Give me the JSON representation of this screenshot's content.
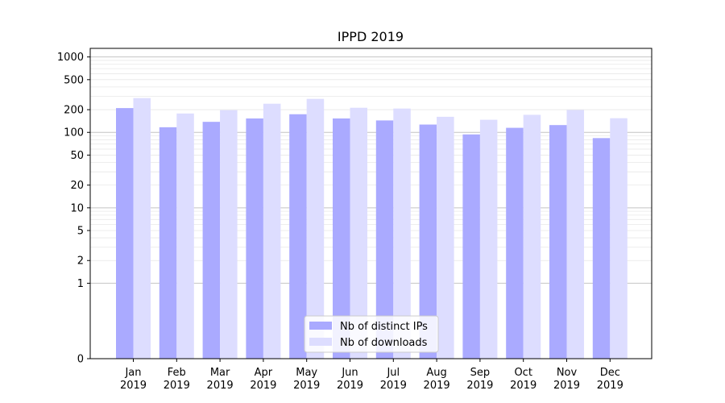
{
  "chart_data": {
    "type": "bar",
    "title": "IPPD 2019",
    "xlabel": "",
    "ylabel": "",
    "yscale": "symlog",
    "ylim": [
      0,
      1300
    ],
    "y_ticks": [
      0,
      1,
      2,
      5,
      10,
      20,
      50,
      100,
      200,
      500,
      1000
    ],
    "grid": "horizontal",
    "legend_position": "bottom-center",
    "categories": [
      [
        "Jan",
        "2019"
      ],
      [
        "Feb",
        "2019"
      ],
      [
        "Mar",
        "2019"
      ],
      [
        "Apr",
        "2019"
      ],
      [
        "May",
        "2019"
      ],
      [
        "Jun",
        "2019"
      ],
      [
        "Jul",
        "2019"
      ],
      [
        "Aug",
        "2019"
      ],
      [
        "Sep",
        "2019"
      ],
      [
        "Oct",
        "2019"
      ],
      [
        "Nov",
        "2019"
      ],
      [
        "Dec",
        "2019"
      ]
    ],
    "series": [
      {
        "name": "Nb of distinct IPs",
        "color": "#aaaaff",
        "values": [
          210,
          117,
          138,
          153,
          174,
          153,
          144,
          127,
          94,
          115,
          125,
          84
        ]
      },
      {
        "name": "Nb of downloads",
        "color": "#ddddff",
        "values": [
          285,
          178,
          197,
          240,
          278,
          212,
          207,
          161,
          147,
          171,
          198,
          154
        ]
      }
    ]
  }
}
